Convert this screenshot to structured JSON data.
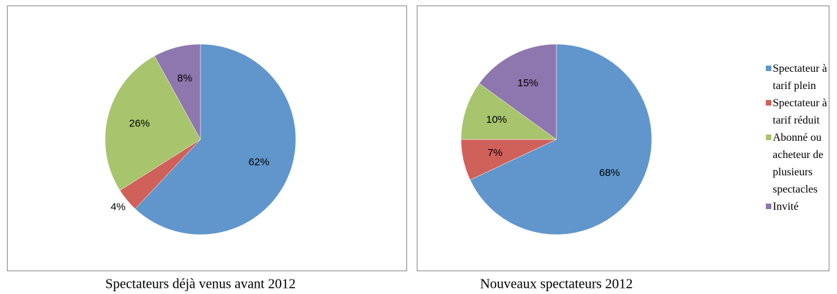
{
  "chart_data": [
    {
      "type": "pie",
      "title": "Spectateurs déjà venus avant 2012",
      "values": [
        62,
        4,
        26,
        8
      ],
      "value_labels": [
        "62%",
        "4%",
        "26%",
        "8%"
      ],
      "colors": [
        "#6096cb",
        "#d0605a",
        "#a8c46c",
        "#8e76ae"
      ]
    },
    {
      "type": "pie",
      "title": "Nouveaux spectateurs 2012",
      "categories": [
        "Spectateur à tarif plein",
        "Spectateur à tarif réduit",
        "Abonné ou acheteur de plusieurs spectacles",
        "Invité"
      ],
      "values": [
        68,
        7,
        10,
        15
      ],
      "value_labels": [
        "68%",
        "7%",
        "10%",
        "15%"
      ],
      "colors": [
        "#6096cb",
        "#d0605a",
        "#a8c46c",
        "#8e76ae"
      ],
      "legend": "right"
    }
  ]
}
